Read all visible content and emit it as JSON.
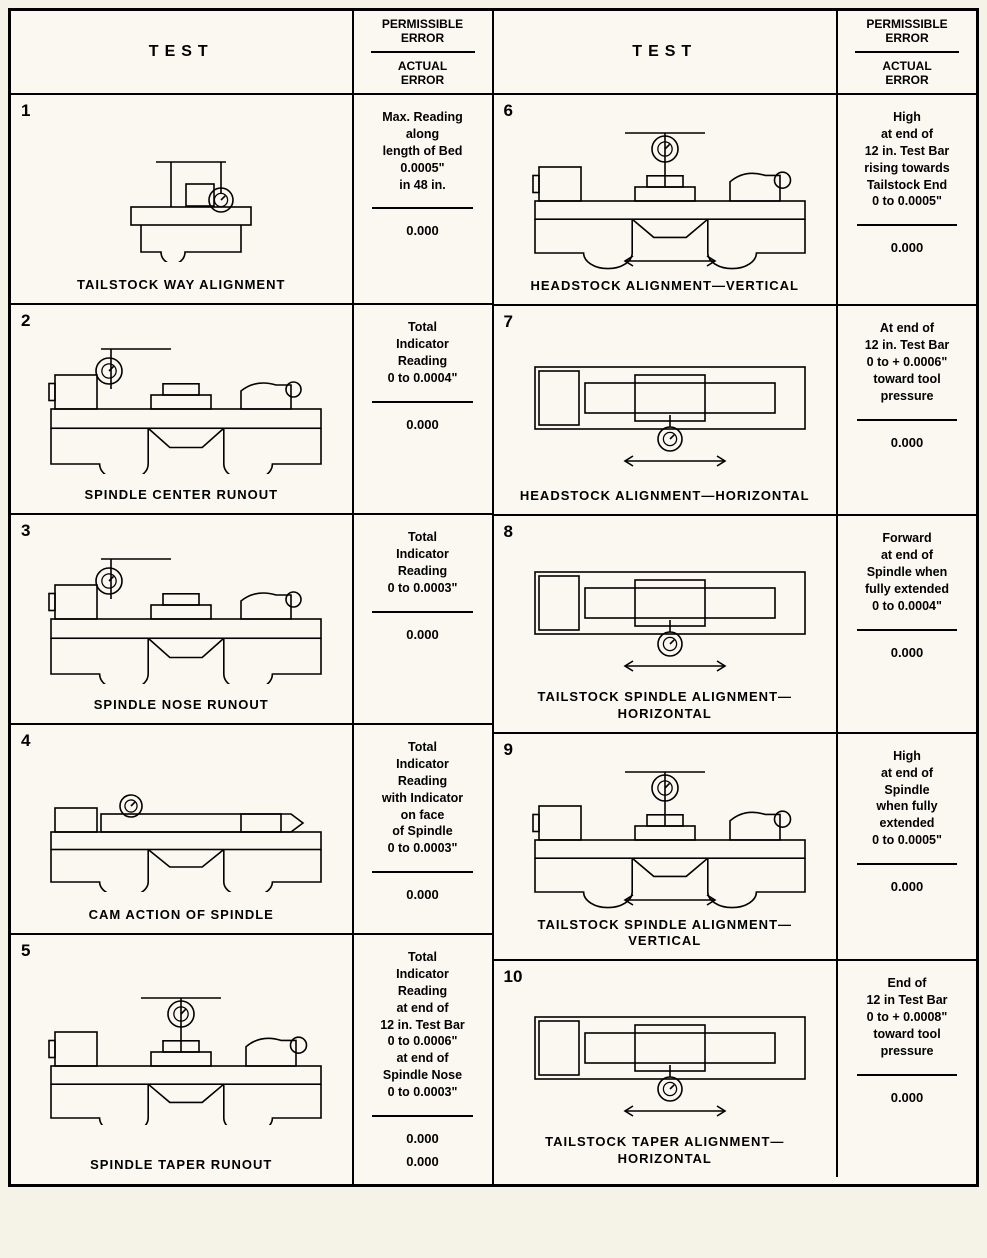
{
  "headers": {
    "test_label": "TEST",
    "permissible_label": "PERMISSIBLE\nERROR",
    "actual_label": "ACTUAL\nERROR"
  },
  "left_tests": [
    {
      "num": "1",
      "title": "TAILSTOCK WAY ALIGNMENT",
      "permissible": "Max. Reading\nalong\nlength of Bed\n0.0005\"\nin 48 in.",
      "actual": "0.000",
      "diagram": "tailstock-way"
    },
    {
      "num": "2",
      "title": "SPINDLE CENTER RUNOUT",
      "permissible": "Total\nIndicator\nReading\n0 to 0.0004\"",
      "actual": "0.000",
      "diagram": "lathe-dial-left"
    },
    {
      "num": "3",
      "title": "SPINDLE NOSE RUNOUT",
      "permissible": "Total\nIndicator\nReading\n0 to 0.0003\"",
      "actual": "0.000",
      "diagram": "lathe-dial-left"
    },
    {
      "num": "4",
      "title": "CAM ACTION OF SPINDLE",
      "permissible": "Total\nIndicator\nReading\nwith Indicator\non face\nof Spindle\n0 to 0.0003\"",
      "actual": "0.000",
      "diagram": "lathe-flat"
    },
    {
      "num": "5",
      "title": "SPINDLE TAPER RUNOUT",
      "permissible": "Total\nIndicator\nReading\nat end of\n12 in. Test Bar\n0 to 0.0006\"\nat end of\nSpindle Nose\n0 to 0.0003\"",
      "actual": "0.000\n0.000",
      "diagram": "lathe-dial-top"
    }
  ],
  "right_tests": [
    {
      "num": "6",
      "title": "HEADSTOCK ALIGNMENT—VERTICAL",
      "permissible": "High\nat end of\n12 in. Test Bar\nrising towards\nTailstock End\n0 to 0.0005\"",
      "actual": "0.000",
      "diagram": "lathe-dial-top-arrow"
    },
    {
      "num": "7",
      "title": "HEADSTOCK ALIGNMENT—HORIZONTAL",
      "permissible": "At end of\n12 in. Test Bar\n0 to + 0.0006\"\ntoward tool\npressure",
      "actual": "0.000",
      "diagram": "lathe-plan-arrow"
    },
    {
      "num": "8",
      "title": "TAILSTOCK SPINDLE ALIGNMENT—\nHORIZONTAL",
      "permissible": "Forward\nat end of\nSpindle when\nfully extended\n0 to 0.0004\"",
      "actual": "0.000",
      "diagram": "lathe-plan-arrow"
    },
    {
      "num": "9",
      "title": "TAILSTOCK SPINDLE ALIGNMENT—\nVERTICAL",
      "permissible": "High\nat end of\nSpindle\nwhen fully\nextended\n0 to 0.0005\"",
      "actual": "0.000",
      "diagram": "lathe-dial-top-arrow"
    },
    {
      "num": "10",
      "title": "TAILSTOCK TAPER ALIGNMENT—\nHORIZONTAL",
      "permissible": "End of\n12 in Test Bar\n0 to + 0.0008\"\ntoward tool\npressure",
      "actual": "0.000",
      "diagram": "lathe-plan-arrow"
    }
  ],
  "style": {
    "stroke": "#000000",
    "stroke_width": 1.6,
    "background": "#faf8f0"
  }
}
